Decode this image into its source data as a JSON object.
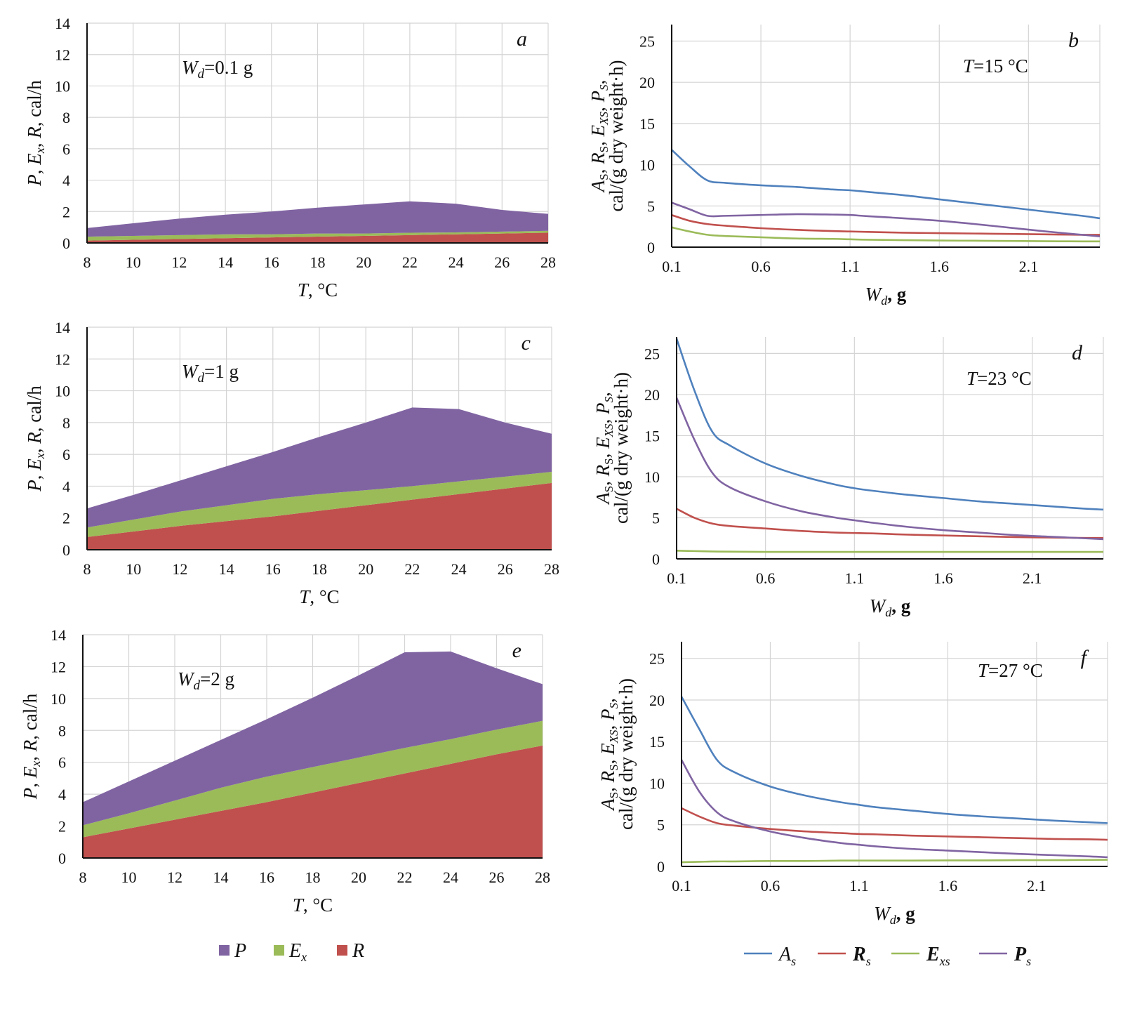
{
  "figure": {
    "legend_left": [
      {
        "key": "P",
        "label": "P",
        "sub": "",
        "color": "#8064A2"
      },
      {
        "key": "Ex",
        "label": "E",
        "sub": "x",
        "color": "#9BBB59"
      },
      {
        "key": "R",
        "label": "R",
        "sub": "",
        "color": "#C0504D"
      }
    ],
    "legend_right": [
      {
        "key": "As",
        "label": "A",
        "sub": "s",
        "color": "#4F81BD"
      },
      {
        "key": "Rs",
        "label": "R",
        "sub": "s",
        "color": "#C0504D"
      },
      {
        "key": "Exs",
        "label": "E",
        "sub": "xs",
        "color": "#9BBB59"
      },
      {
        "key": "Ps",
        "label": "P",
        "sub": "s",
        "color": "#8064A2"
      }
    ]
  },
  "chart_data": [
    {
      "id": "a",
      "panel_label": "a",
      "type": "area",
      "stacked": true,
      "annotation": {
        "var": "W",
        "sub": "d",
        "text": "=0.1 g"
      },
      "xlabel": {
        "var": "T",
        "text": ", °C"
      },
      "ylabel": "P, Ex, R, cal/h",
      "xlim": [
        8,
        28
      ],
      "ylim": [
        0,
        14
      ],
      "xticks": [
        8,
        10,
        12,
        14,
        16,
        18,
        20,
        22,
        24,
        26,
        28
      ],
      "yticks": [
        0,
        2,
        4,
        6,
        8,
        10,
        12,
        14
      ],
      "grid": true,
      "x": [
        8,
        10,
        12,
        14,
        16,
        18,
        20,
        22,
        24,
        26,
        28
      ],
      "series": [
        {
          "name": "R",
          "color": "#C0504D",
          "values": [
            0.15,
            0.2,
            0.25,
            0.3,
            0.35,
            0.4,
            0.45,
            0.5,
            0.55,
            0.6,
            0.65
          ]
        },
        {
          "name": "Ex",
          "color": "#9BBB59",
          "values": [
            0.25,
            0.25,
            0.25,
            0.25,
            0.2,
            0.2,
            0.15,
            0.15,
            0.12,
            0.12,
            0.12
          ]
        },
        {
          "name": "P",
          "color": "#8064A2",
          "values": [
            0.55,
            0.8,
            1.05,
            1.25,
            1.45,
            1.65,
            1.85,
            2.0,
            1.83,
            1.38,
            1.08
          ]
        }
      ]
    },
    {
      "id": "b",
      "panel_label": "b",
      "type": "line",
      "annotation": {
        "var": "T",
        "sub": "",
        "text": "=15 °C"
      },
      "xlabel": {
        "var": "W",
        "sub": "d",
        "text": ", g"
      },
      "ylabel": "As, Rs, Exs, Ps, cal/(g dry weight·h)",
      "xlim": [
        0.1,
        2.5
      ],
      "ylim": [
        0,
        27
      ],
      "xticks": [
        0.1,
        0.6,
        1.1,
        1.6,
        2.1
      ],
      "yticks": [
        0,
        5,
        10,
        15,
        20,
        25
      ],
      "grid": true,
      "x": [
        0.1,
        0.2,
        0.3,
        0.4,
        0.6,
        0.8,
        1.0,
        1.1,
        1.2,
        1.4,
        1.6,
        1.8,
        2.0,
        2.2,
        2.4,
        2.5
      ],
      "series": [
        {
          "name": "As",
          "color": "#4F81BD",
          "values": [
            11.8,
            9.8,
            8.1,
            7.8,
            7.5,
            7.3,
            7.0,
            6.9,
            6.7,
            6.3,
            5.8,
            5.3,
            4.8,
            4.3,
            3.8,
            3.5
          ]
        },
        {
          "name": "Rs",
          "color": "#C0504D",
          "values": [
            3.9,
            3.2,
            2.8,
            2.6,
            2.3,
            2.1,
            1.95,
            1.9,
            1.85,
            1.75,
            1.7,
            1.65,
            1.6,
            1.55,
            1.5,
            1.5
          ]
        },
        {
          "name": "Exs",
          "color": "#9BBB59",
          "values": [
            2.4,
            1.9,
            1.5,
            1.35,
            1.2,
            1.05,
            1.0,
            0.95,
            0.9,
            0.85,
            0.8,
            0.78,
            0.75,
            0.72,
            0.7,
            0.7
          ]
        },
        {
          "name": "Ps",
          "color": "#8064A2",
          "values": [
            5.4,
            4.6,
            3.8,
            3.8,
            3.9,
            4.0,
            3.95,
            3.9,
            3.75,
            3.5,
            3.2,
            2.8,
            2.35,
            1.9,
            1.5,
            1.3
          ]
        }
      ]
    },
    {
      "id": "c",
      "panel_label": "c",
      "type": "area",
      "stacked": true,
      "annotation": {
        "var": "W",
        "sub": "d",
        "text": "=1 g"
      },
      "xlabel": {
        "var": "T",
        "text": ", °C"
      },
      "ylabel": "P, Ex, R, cal/h",
      "xlim": [
        8,
        28
      ],
      "ylim": [
        0,
        14
      ],
      "xticks": [
        8,
        10,
        12,
        14,
        16,
        18,
        20,
        22,
        24,
        26,
        28
      ],
      "yticks": [
        0,
        2,
        4,
        6,
        8,
        10,
        12,
        14
      ],
      "grid": true,
      "x": [
        8,
        10,
        12,
        14,
        16,
        18,
        20,
        22,
        24,
        26,
        28
      ],
      "series": [
        {
          "name": "R",
          "color": "#C0504D",
          "values": [
            0.8,
            1.15,
            1.5,
            1.8,
            2.1,
            2.45,
            2.8,
            3.15,
            3.5,
            3.85,
            4.2
          ]
        },
        {
          "name": "Ex",
          "color": "#9BBB59",
          "values": [
            0.6,
            0.75,
            0.9,
            1.0,
            1.1,
            1.05,
            0.95,
            0.85,
            0.8,
            0.75,
            0.7
          ]
        },
        {
          "name": "P",
          "color": "#8064A2",
          "values": [
            1.2,
            1.55,
            1.95,
            2.45,
            2.95,
            3.6,
            4.25,
            4.95,
            4.55,
            3.4,
            2.4
          ]
        }
      ]
    },
    {
      "id": "d",
      "panel_label": "d",
      "type": "line",
      "annotation": {
        "var": "T",
        "sub": "",
        "text": "=23 °C"
      },
      "xlabel": {
        "var": "W",
        "sub": "d",
        "text": ", g"
      },
      "ylabel": "As, Rs, Exs, Ps, cal/(g dry weight·h)",
      "xlim": [
        0.1,
        2.5
      ],
      "ylim": [
        0,
        27
      ],
      "xticks": [
        0.1,
        0.6,
        1.1,
        1.6,
        2.1
      ],
      "yticks": [
        0,
        5,
        10,
        15,
        20,
        25
      ],
      "grid": true,
      "x": [
        0.1,
        0.2,
        0.3,
        0.4,
        0.6,
        0.8,
        1.0,
        1.1,
        1.2,
        1.4,
        1.6,
        1.8,
        2.0,
        2.2,
        2.4,
        2.5
      ],
      "series": [
        {
          "name": "As",
          "color": "#4F81BD",
          "values": [
            26.8,
            20.5,
            15.5,
            13.8,
            11.6,
            10.1,
            9.0,
            8.6,
            8.3,
            7.8,
            7.4,
            7.0,
            6.7,
            6.4,
            6.1,
            6.0
          ]
        },
        {
          "name": "Rs",
          "color": "#C0504D",
          "values": [
            6.1,
            5.0,
            4.3,
            4.0,
            3.7,
            3.4,
            3.2,
            3.15,
            3.1,
            2.95,
            2.85,
            2.75,
            2.65,
            2.6,
            2.55,
            2.55
          ]
        },
        {
          "name": "Exs",
          "color": "#9BBB59",
          "values": [
            1.0,
            0.95,
            0.9,
            0.88,
            0.85,
            0.85,
            0.85,
            0.85,
            0.85,
            0.85,
            0.85,
            0.85,
            0.85,
            0.85,
            0.85,
            0.85
          ]
        },
        {
          "name": "Ps",
          "color": "#8064A2",
          "values": [
            19.6,
            14.5,
            10.5,
            8.7,
            7.0,
            5.8,
            5.0,
            4.7,
            4.4,
            3.9,
            3.5,
            3.2,
            2.9,
            2.7,
            2.5,
            2.4
          ]
        }
      ]
    },
    {
      "id": "e",
      "panel_label": "e",
      "type": "area",
      "stacked": true,
      "annotation": {
        "var": "W",
        "sub": "d",
        "text": "=2 g"
      },
      "xlabel": {
        "var": "T",
        "text": ", °C"
      },
      "ylabel": "P, Ex, R, cal/h",
      "xlim": [
        8,
        28
      ],
      "ylim": [
        0,
        14
      ],
      "xticks": [
        8,
        10,
        12,
        14,
        16,
        18,
        20,
        22,
        24,
        26,
        28
      ],
      "yticks": [
        0,
        2,
        4,
        6,
        8,
        10,
        12,
        14
      ],
      "grid": true,
      "x": [
        8,
        10,
        12,
        14,
        16,
        18,
        20,
        22,
        24,
        26,
        28
      ],
      "series": [
        {
          "name": "R",
          "color": "#C0504D",
          "values": [
            1.3,
            1.85,
            2.4,
            2.95,
            3.5,
            4.1,
            4.7,
            5.3,
            5.9,
            6.5,
            7.05
          ]
        },
        {
          "name": "Ex",
          "color": "#9BBB59",
          "values": [
            0.75,
            0.95,
            1.2,
            1.45,
            1.6,
            1.6,
            1.6,
            1.6,
            1.55,
            1.55,
            1.55
          ]
        },
        {
          "name": "P",
          "color": "#8064A2",
          "values": [
            1.45,
            2.0,
            2.5,
            3.0,
            3.6,
            4.35,
            5.15,
            6.0,
            5.5,
            3.85,
            2.3
          ]
        }
      ]
    },
    {
      "id": "f",
      "panel_label": "f",
      "type": "line",
      "annotation": {
        "var": "T",
        "sub": "",
        "text": "=27 °C"
      },
      "xlabel": {
        "var": "W",
        "sub": "d",
        "text": ", g"
      },
      "ylabel": "As, Rs, Exs, Ps, cal/(g dry weight·h)",
      "xlim": [
        0.1,
        2.5
      ],
      "ylim": [
        0,
        27
      ],
      "xticks": [
        0.1,
        0.6,
        1.1,
        1.6,
        2.1
      ],
      "yticks": [
        0,
        5,
        10,
        15,
        20,
        25
      ],
      "grid": true,
      "x": [
        0.1,
        0.2,
        0.3,
        0.4,
        0.6,
        0.8,
        1.0,
        1.1,
        1.2,
        1.4,
        1.6,
        1.8,
        2.0,
        2.2,
        2.4,
        2.5
      ],
      "series": [
        {
          "name": "As",
          "color": "#4F81BD",
          "values": [
            20.4,
            16.5,
            12.8,
            11.3,
            9.6,
            8.5,
            7.7,
            7.4,
            7.1,
            6.7,
            6.3,
            6.0,
            5.75,
            5.5,
            5.3,
            5.2
          ]
        },
        {
          "name": "Rs",
          "color": "#C0504D",
          "values": [
            7.0,
            6.0,
            5.2,
            4.9,
            4.5,
            4.2,
            4.0,
            3.9,
            3.85,
            3.7,
            3.6,
            3.5,
            3.4,
            3.3,
            3.25,
            3.2
          ]
        },
        {
          "name": "Exs",
          "color": "#9BBB59",
          "values": [
            0.5,
            0.55,
            0.6,
            0.6,
            0.65,
            0.65,
            0.7,
            0.7,
            0.7,
            0.7,
            0.72,
            0.72,
            0.75,
            0.75,
            0.78,
            0.8
          ]
        },
        {
          "name": "Ps",
          "color": "#8064A2",
          "values": [
            12.8,
            9.0,
            6.5,
            5.4,
            4.2,
            3.4,
            2.8,
            2.6,
            2.4,
            2.1,
            1.9,
            1.7,
            1.5,
            1.35,
            1.2,
            1.1
          ]
        }
      ]
    }
  ]
}
